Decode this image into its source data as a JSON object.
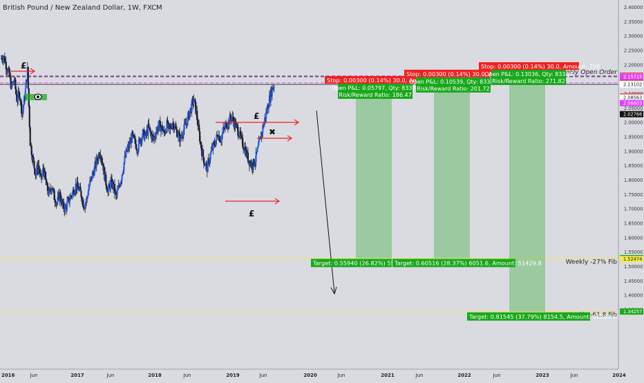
{
  "title": "British Pound / New Zealand Dollar, 1W, FXCM",
  "chart_data": {
    "type": "candlestick",
    "symbol": "British Pound / New Zealand Dollar",
    "interval": "1W",
    "source": "FXCM",
    "ylim": [
      1.29,
      2.42
    ],
    "y_ticks": [
      "2.40000",
      "2.35000",
      "2.30000",
      "2.25000",
      "2.20000",
      "2.15000",
      "2.10000",
      "2.05000",
      "2.00000",
      "1.95000",
      "1.90000",
      "1.85000",
      "1.80000",
      "1.75000",
      "1.70000",
      "1.65000",
      "1.60000",
      "1.55000",
      "1.50000",
      "1.45000",
      "1.40000",
      "1.35000"
    ],
    "x_labels": [
      "2016",
      "Jun",
      "2017",
      "Jun",
      "2018",
      "Jun",
      "2019",
      "Jun",
      "2020",
      "Jun",
      "2021",
      "Jun",
      "2022",
      "Jun",
      "2023",
      "Jun",
      "2024"
    ],
    "price_path": [
      2.22,
      2.23,
      2.2,
      2.17,
      2.12,
      2.15,
      2.08,
      2.1,
      2.03,
      2.09,
      2.18,
      1.93,
      1.87,
      1.82,
      1.85,
      1.8,
      1.84,
      1.78,
      1.75,
      1.78,
      1.74,
      1.72,
      1.75,
      1.71,
      1.7,
      1.72,
      1.74,
      1.76,
      1.78,
      1.77,
      1.75,
      1.71,
      1.73,
      1.78,
      1.81,
      1.84,
      1.87,
      1.9,
      1.86,
      1.8,
      1.76,
      1.79,
      1.78,
      1.74,
      1.77,
      1.81,
      1.86,
      1.9,
      1.92,
      1.95,
      1.93,
      1.91,
      1.94,
      1.96,
      1.95,
      1.98,
      1.96,
      1.94,
      1.97,
      1.99,
      1.98,
      1.96,
      1.99,
      1.97,
      2.0,
      1.98,
      1.96,
      1.94,
      1.97,
      1.99,
      2.02,
      2.05,
      2.08,
      2.03,
      1.96,
      1.9,
      1.86,
      1.84,
      1.88,
      1.91,
      1.93,
      1.96,
      1.94,
      1.97,
      1.99,
      2.0,
      2.02,
      2.0,
      1.98,
      1.96,
      1.93,
      1.91,
      1.88,
      1.86,
      1.85,
      1.87,
      1.91,
      1.95,
      1.99,
      2.03,
      2.07,
      2.11,
      2.131
    ],
    "levels": [
      {
        "price": 2.16102,
        "style": "dashed",
        "color": "#e040fb"
      },
      {
        "price": 2.15802,
        "style": "dashed",
        "color": "#222222",
        "label": "Weekly Open Order"
      },
      {
        "price": 2.13605,
        "style": "dashed",
        "color": "#e040fb"
      },
      {
        "price": 2.13102,
        "style": "solid",
        "color": "#444444"
      },
      {
        "price": 1.52789,
        "style": "solid",
        "color": "#f2ea4a",
        "label": "Weekly -27% Fib"
      },
      {
        "price": 1.34208,
        "style": "solid",
        "color": "#f2ea4a",
        "label": "Weekly -61.8 Fib"
      }
    ],
    "price_labels": [
      {
        "text": "2.16102",
        "price": 2.16102,
        "bg": "#ee2222",
        "fg": "#ffffff"
      },
      {
        "text": "2.15802",
        "price": 2.15802,
        "bg": "#ffffff",
        "fg": "#222222"
      },
      {
        "text": "2.15715",
        "price": 2.15715,
        "bg": "#e040fb",
        "fg": "#ffffff"
      },
      {
        "text": "2.13605",
        "price": 2.13605,
        "bg": "#ee2222",
        "fg": "#ffffff"
      },
      {
        "text": "2.13305",
        "price": 2.13305,
        "bg": "#ffffff",
        "fg": "#222222"
      },
      {
        "text": "2.13102",
        "price": 2.13102,
        "bg": "#ffffff",
        "fg": "#222222"
      },
      {
        "text": "2.08863",
        "price": 2.08863,
        "bg": "#ee2222",
        "fg": "#ffffff"
      },
      {
        "text": "2.08563",
        "price": 2.08563,
        "bg": "#ffffff",
        "fg": "#222222"
      },
      {
        "text": "2.06603",
        "price": 2.06603,
        "bg": "#e040fb",
        "fg": "#ffffff"
      },
      {
        "text": "2.02766",
        "price": 2.02766,
        "bg": "#111111",
        "fg": "#ffffff"
      },
      {
        "text": "1.52789",
        "price": 1.52789,
        "bg": "#19a81c",
        "fg": "#ffffff"
      },
      {
        "text": "1.52623",
        "price": 1.52623,
        "bg": "#19a81c",
        "fg": "#ffffff"
      },
      {
        "text": "1.52474",
        "price": 1.52474,
        "bg": "#f2ea4a",
        "fg": "#222222"
      },
      {
        "text": "1.34208",
        "price": 1.34208,
        "bg": "#f2ea4a",
        "fg": "#222222"
      },
      {
        "text": "1.34257",
        "price": 1.34257,
        "bg": "#19a81c",
        "fg": "#ffffff"
      }
    ],
    "positions": [
      {
        "stop": "Stop: 0.00300 (0.14%) 30.0, Amount: 7",
        "open": "Open P&L: 0.05797, Qty: 83333",
        "rr": "Risk/Reward Ratio: 186.47",
        "target": "Target: 0.55940 (26.82%) 5594.0,"
      },
      {
        "stop": "Stop: 0.00300 (0.14%) 30.0, Amount: 7",
        "open": "Open P&L: 0.10539, Qty: 83333",
        "rr": "Risk/Reward Ratio: 201.72",
        "target": "Target: 0.60516 (28.37%) 6051.6, Amount: 51429.8"
      },
      {
        "stop": "Stop: 0.00300 (0.14%) 30.0, Amount: 750",
        "open": "Open P&L: 0.13036, Qty: 83333",
        "rr": "Risk/Reward Ratio: 271.82",
        "target": "Target: 0.81545 (37.79%) 8154.5, Amount: 68953.89"
      }
    ],
    "annotations": [
      "£",
      "£",
      "£",
      "✖"
    ],
    "colors": {
      "background": "#d9dbe1",
      "candle": "#2962ff",
      "stop": "#ee2222",
      "target": "#19a81c",
      "fib": "#f2ea4a",
      "magenta": "#e040fb",
      "arrow": "#ee2222"
    }
  }
}
